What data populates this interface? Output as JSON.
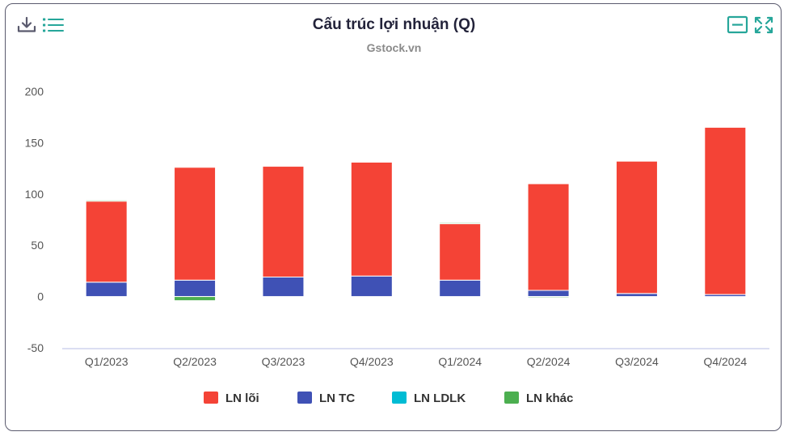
{
  "icons": {
    "download": "download-icon",
    "menu": "menu-icon",
    "minimize": "minimize-icon",
    "fullscreen": "fullscreen-icon",
    "toolbar_color_left": "#5a5a6e",
    "toolbar_color_right": "#26a69a"
  },
  "chart_data": {
    "type": "bar",
    "stacked": true,
    "title": "Cấu trúc lợi nhuận (Q)",
    "subtitle": "Gstock.vn",
    "categories": [
      "Q1/2023",
      "Q2/2023",
      "Q3/2023",
      "Q4/2023",
      "Q1/2024",
      "Q2/2024",
      "Q3/2024",
      "Q4/2024"
    ],
    "series": [
      {
        "name": "LN lõi",
        "color": "#f44336",
        "values": [
          79,
          110,
          108,
          111,
          55,
          104,
          129,
          163
        ]
      },
      {
        "name": "LN TC",
        "color": "#3f51b5",
        "values": [
          14,
          16,
          19,
          20,
          16,
          6,
          3,
          2
        ]
      },
      {
        "name": "LN LDLK",
        "color": "#00bcd4",
        "values": [
          0,
          0,
          0,
          0,
          0,
          0,
          0,
          0
        ]
      },
      {
        "name": "LN khác",
        "color": "#4caf50",
        "values": [
          1,
          -4,
          0,
          0,
          1,
          -1,
          0,
          0
        ]
      }
    ],
    "ylim": [
      -50,
      200
    ],
    "yticks": [
      -50,
      0,
      50,
      100,
      150,
      200
    ],
    "grid": false,
    "legend": "bottom"
  }
}
